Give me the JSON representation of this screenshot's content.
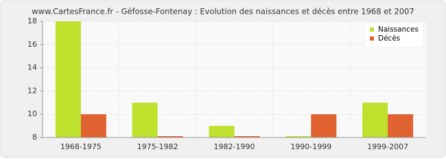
{
  "chart_data": {
    "type": "bar",
    "title": "www.CartesFrance.fr - Géfosse-Fontenay : Evolution des naissances et décès entre 1968 et 2007",
    "categories": [
      "1968-1975",
      "1975-1982",
      "1982-1990",
      "1990-1999",
      "1999-2007"
    ],
    "series": [
      {
        "name": "Naissances",
        "color": "#bde12d",
        "values": [
          18,
          11,
          9,
          8,
          11
        ]
      },
      {
        "name": "Décès",
        "color": "#e06230",
        "values": [
          10,
          8,
          8,
          10,
          10
        ]
      }
    ],
    "ylim": [
      8,
      18
    ],
    "yticks": [
      8,
      10,
      12,
      14,
      16,
      18
    ],
    "grid": true,
    "legend": "upper-right"
  }
}
